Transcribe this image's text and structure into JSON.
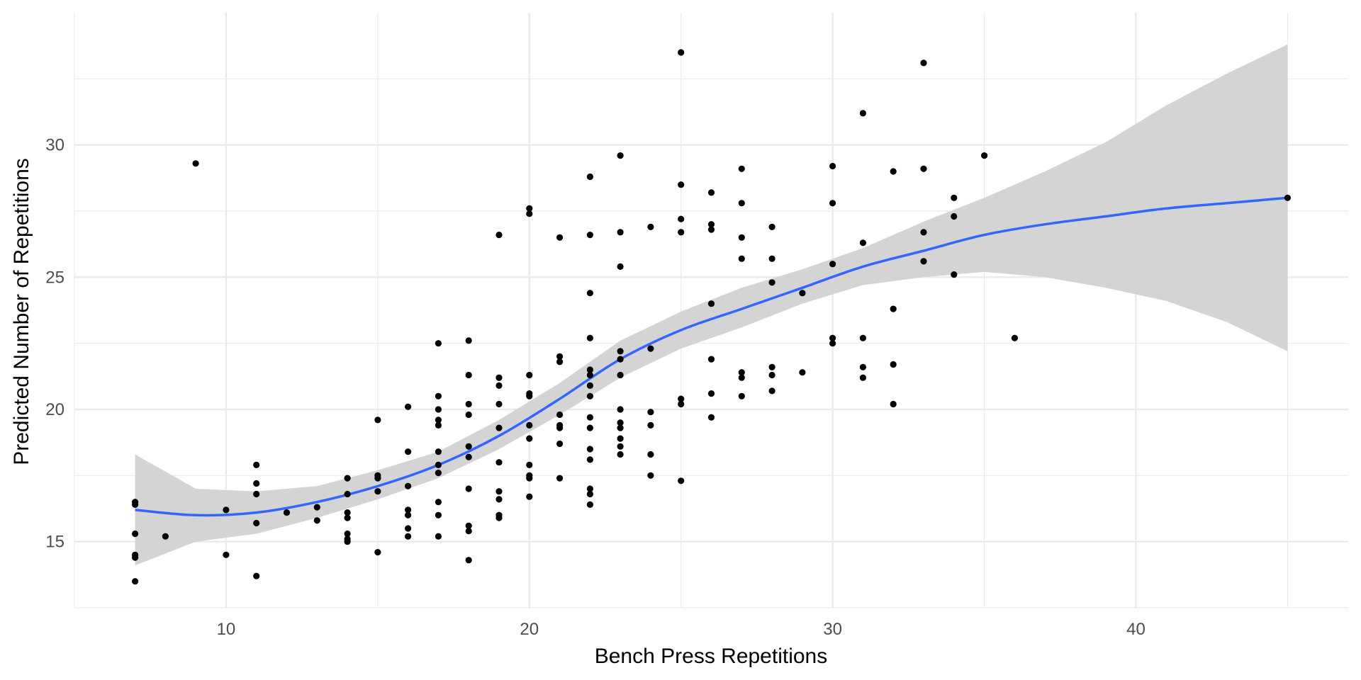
{
  "chart_data": {
    "type": "scatter",
    "title": "",
    "xlabel": "Bench Press Repetitions",
    "ylabel": "Predicted Number of Repetitions",
    "xlim": [
      5,
      47
    ],
    "ylim": [
      12.5,
      35
    ],
    "x_ticks": [
      10,
      20,
      30,
      40
    ],
    "y_ticks": [
      15,
      20,
      25,
      30
    ],
    "x_tick_labels": [
      "10",
      "20",
      "30",
      "40"
    ],
    "y_tick_labels": [
      "15",
      "20",
      "25",
      "30"
    ],
    "grid": true,
    "legend": "none",
    "colors": {
      "points": "#000000",
      "smooth_line": "#3366ff",
      "confidence_band": "#d4d4d4",
      "grid": "#ebebeb"
    },
    "points": [
      [
        7,
        16.5
      ],
      [
        7,
        16.4
      ],
      [
        7,
        15.3
      ],
      [
        7,
        14.5
      ],
      [
        7,
        14.4
      ],
      [
        7,
        13.5
      ],
      [
        8,
        15.2
      ],
      [
        9,
        29.3
      ],
      [
        10,
        16.2
      ],
      [
        10,
        14.5
      ],
      [
        11,
        17.9
      ],
      [
        11,
        17.2
      ],
      [
        11,
        16.8
      ],
      [
        11,
        15.7
      ],
      [
        11,
        13.7
      ],
      [
        12,
        16.1
      ],
      [
        13,
        16.3
      ],
      [
        13,
        15.8
      ],
      [
        14,
        17.4
      ],
      [
        14,
        16.8
      ],
      [
        14,
        16.1
      ],
      [
        14,
        15.9
      ],
      [
        14,
        15.3
      ],
      [
        14,
        15.1
      ],
      [
        14,
        15.0
      ],
      [
        15,
        19.6
      ],
      [
        15,
        17.5
      ],
      [
        15,
        17.4
      ],
      [
        15,
        16.9
      ],
      [
        15,
        14.6
      ],
      [
        16,
        20.1
      ],
      [
        16,
        18.4
      ],
      [
        16,
        17.1
      ],
      [
        16,
        16.2
      ],
      [
        16,
        16.0
      ],
      [
        16,
        15.5
      ],
      [
        16,
        15.2
      ],
      [
        17,
        22.5
      ],
      [
        17,
        20.5
      ],
      [
        17,
        20.0
      ],
      [
        17,
        19.6
      ],
      [
        17,
        19.4
      ],
      [
        17,
        18.4
      ],
      [
        17,
        17.9
      ],
      [
        17,
        17.6
      ],
      [
        17,
        16.5
      ],
      [
        17,
        16.0
      ],
      [
        17,
        15.2
      ],
      [
        18,
        22.6
      ],
      [
        18,
        21.3
      ],
      [
        18,
        20.2
      ],
      [
        18,
        19.8
      ],
      [
        18,
        18.6
      ],
      [
        18,
        18.2
      ],
      [
        18,
        17.0
      ],
      [
        18,
        15.6
      ],
      [
        18,
        15.4
      ],
      [
        18,
        14.3
      ],
      [
        19,
        26.6
      ],
      [
        19,
        21.2
      ],
      [
        19,
        20.9
      ],
      [
        19,
        20.2
      ],
      [
        19,
        19.3
      ],
      [
        19,
        18.0
      ],
      [
        19,
        16.9
      ],
      [
        19,
        16.6
      ],
      [
        19,
        16.0
      ],
      [
        19,
        15.9
      ],
      [
        20,
        27.6
      ],
      [
        20,
        27.4
      ],
      [
        20,
        21.3
      ],
      [
        20,
        20.6
      ],
      [
        20,
        20.5
      ],
      [
        20,
        19.4
      ],
      [
        20,
        18.9
      ],
      [
        20,
        17.9
      ],
      [
        20,
        17.5
      ],
      [
        20,
        17.4
      ],
      [
        20,
        16.7
      ],
      [
        21,
        26.5
      ],
      [
        21,
        22.0
      ],
      [
        21,
        21.8
      ],
      [
        21,
        19.8
      ],
      [
        21,
        19.4
      ],
      [
        21,
        19.3
      ],
      [
        21,
        18.7
      ],
      [
        21,
        17.4
      ],
      [
        22,
        28.8
      ],
      [
        22,
        26.6
      ],
      [
        22,
        24.4
      ],
      [
        22,
        22.7
      ],
      [
        22,
        21.5
      ],
      [
        22,
        21.3
      ],
      [
        22,
        20.9
      ],
      [
        22,
        20.5
      ],
      [
        22,
        19.7
      ],
      [
        22,
        19.3
      ],
      [
        22,
        18.5
      ],
      [
        22,
        18.1
      ],
      [
        22,
        17.0
      ],
      [
        22,
        16.8
      ],
      [
        22,
        16.4
      ],
      [
        23,
        29.6
      ],
      [
        23,
        26.7
      ],
      [
        23,
        25.4
      ],
      [
        23,
        22.2
      ],
      [
        23,
        21.9
      ],
      [
        23,
        21.3
      ],
      [
        23,
        20.0
      ],
      [
        23,
        19.5
      ],
      [
        23,
        19.3
      ],
      [
        23,
        18.9
      ],
      [
        23,
        18.6
      ],
      [
        23,
        18.3
      ],
      [
        24,
        26.9
      ],
      [
        24,
        22.3
      ],
      [
        24,
        19.9
      ],
      [
        24,
        19.4
      ],
      [
        24,
        18.3
      ],
      [
        24,
        17.5
      ],
      [
        25,
        33.5
      ],
      [
        25,
        28.5
      ],
      [
        25,
        27.2
      ],
      [
        25,
        26.7
      ],
      [
        25,
        20.4
      ],
      [
        25,
        20.2
      ],
      [
        25,
        17.3
      ],
      [
        26,
        28.2
      ],
      [
        26,
        27.0
      ],
      [
        26,
        26.8
      ],
      [
        26,
        24.0
      ],
      [
        26,
        21.9
      ],
      [
        26,
        20.6
      ],
      [
        26,
        19.7
      ],
      [
        27,
        29.1
      ],
      [
        27,
        27.8
      ],
      [
        27,
        26.5
      ],
      [
        27,
        25.7
      ],
      [
        27,
        21.4
      ],
      [
        27,
        21.2
      ],
      [
        27,
        20.5
      ],
      [
        28,
        26.9
      ],
      [
        28,
        25.7
      ],
      [
        28,
        24.8
      ],
      [
        28,
        21.6
      ],
      [
        28,
        21.3
      ],
      [
        28,
        20.7
      ],
      [
        29,
        24.4
      ],
      [
        29,
        21.4
      ],
      [
        30,
        29.2
      ],
      [
        30,
        27.8
      ],
      [
        30,
        25.5
      ],
      [
        30,
        22.7
      ],
      [
        30,
        22.5
      ],
      [
        31,
        31.2
      ],
      [
        31,
        26.3
      ],
      [
        31,
        22.7
      ],
      [
        31,
        21.6
      ],
      [
        31,
        21.2
      ],
      [
        32,
        29.0
      ],
      [
        32,
        23.8
      ],
      [
        32,
        21.7
      ],
      [
        32,
        20.2
      ],
      [
        33,
        33.1
      ],
      [
        33,
        29.1
      ],
      [
        33,
        26.7
      ],
      [
        33,
        25.6
      ],
      [
        34,
        28.0
      ],
      [
        34,
        27.3
      ],
      [
        34,
        25.1
      ],
      [
        35,
        29.6
      ],
      [
        36,
        22.7
      ],
      [
        45,
        28.0
      ]
    ],
    "smooth": {
      "x": [
        7,
        9,
        11,
        13,
        15,
        17,
        19,
        21,
        23,
        25,
        27,
        29,
        31,
        33,
        35,
        37,
        39,
        41,
        43,
        45
      ],
      "y": [
        16.2,
        16.0,
        16.1,
        16.5,
        17.1,
        17.9,
        19.0,
        20.4,
        21.9,
        23.0,
        23.8,
        24.6,
        25.4,
        26.0,
        26.6,
        27.0,
        27.3,
        27.6,
        27.8,
        28.0
      ],
      "lower": [
        14.1,
        15.0,
        15.3,
        15.9,
        16.6,
        17.4,
        18.5,
        19.8,
        21.2,
        22.3,
        23.1,
        24.0,
        24.7,
        25.0,
        25.2,
        25.0,
        24.6,
        24.1,
        23.3,
        22.2
      ],
      "upper": [
        18.3,
        17.0,
        16.9,
        17.1,
        17.7,
        18.4,
        19.6,
        21.0,
        22.6,
        23.7,
        24.6,
        25.3,
        26.1,
        27.1,
        28.0,
        29.0,
        30.1,
        31.5,
        32.7,
        33.8
      ]
    }
  }
}
